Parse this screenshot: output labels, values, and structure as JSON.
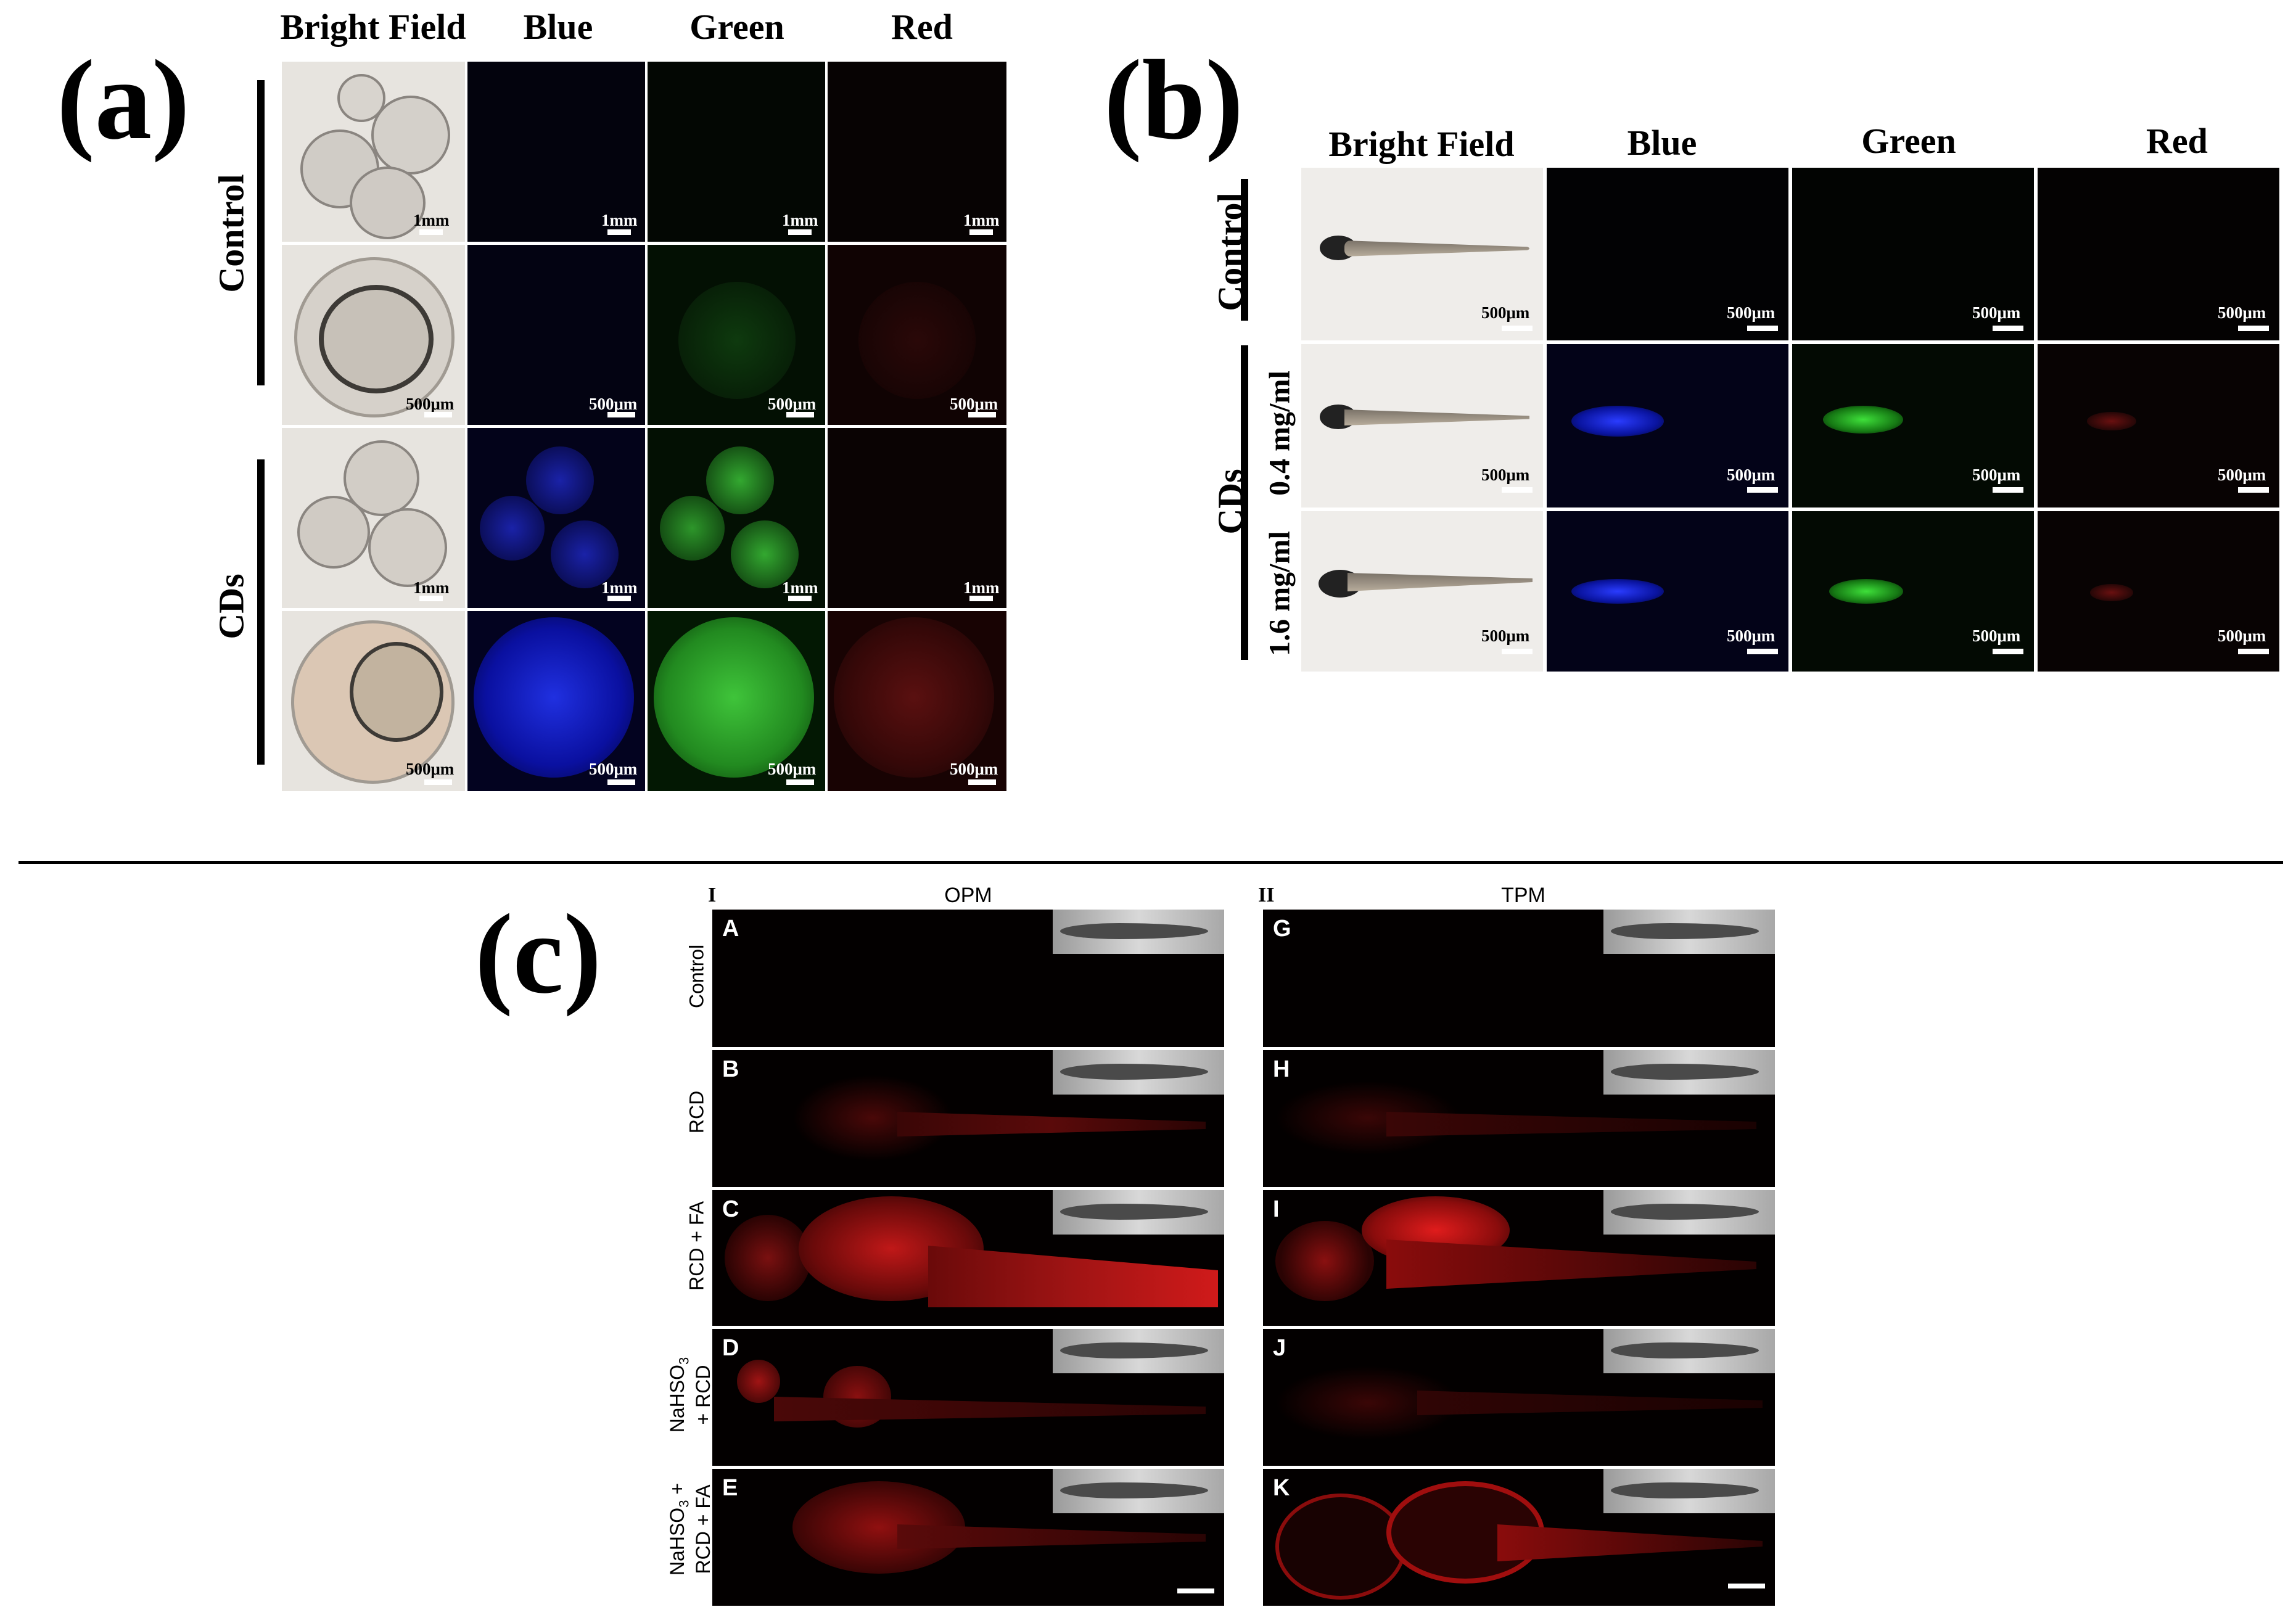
{
  "panel_a": {
    "letter": "(a)",
    "columns": [
      "Bright Field",
      "Blue",
      "Green",
      "Red"
    ],
    "rows": [
      "Control",
      "CDs"
    ],
    "scales": {
      "r1": [
        "1mm",
        "1mm",
        "1mm",
        "1mm"
      ],
      "r2": [
        "500μm",
        "500μm",
        "500μm",
        "500μm"
      ],
      "r3": [
        "1mm",
        "1mm",
        "1mm",
        "1mm"
      ],
      "r4": [
        "500μm",
        "500μm",
        "500μm",
        "500μm"
      ]
    }
  },
  "panel_b": {
    "letter": "(b)",
    "columns": [
      "Bright Field",
      "Blue",
      "Green",
      "Red"
    ],
    "rows": [
      "Control",
      "CDs"
    ],
    "sub_rows": [
      "0.4 mg/ml",
      "1.6 mg/ml"
    ],
    "scale": "500μm"
  },
  "panel_c": {
    "letter": "(c)",
    "left_roman": "I",
    "right_roman": "II",
    "left_title": "OPM",
    "right_title": "TPM",
    "row_labels": [
      "Control",
      "RCD",
      "RCD + FA",
      "NaHSO3 + RCD",
      "NaHSO3 + RCD + FA"
    ],
    "row_label_lines": {
      "r4": [
        "NaHSO",
        "3",
        "+ RCD"
      ],
      "r5": [
        "NaHSO",
        "3",
        " +",
        "RCD + FA"
      ]
    },
    "left_letters": [
      "A",
      "B",
      "C",
      "D",
      "E"
    ],
    "right_letters": [
      "G",
      "H",
      "I",
      "J",
      "K"
    ]
  },
  "colors": {
    "blue_channel": "#1a2bd9",
    "green_channel": "#2ea82a",
    "red_channel": "#b01818"
  }
}
